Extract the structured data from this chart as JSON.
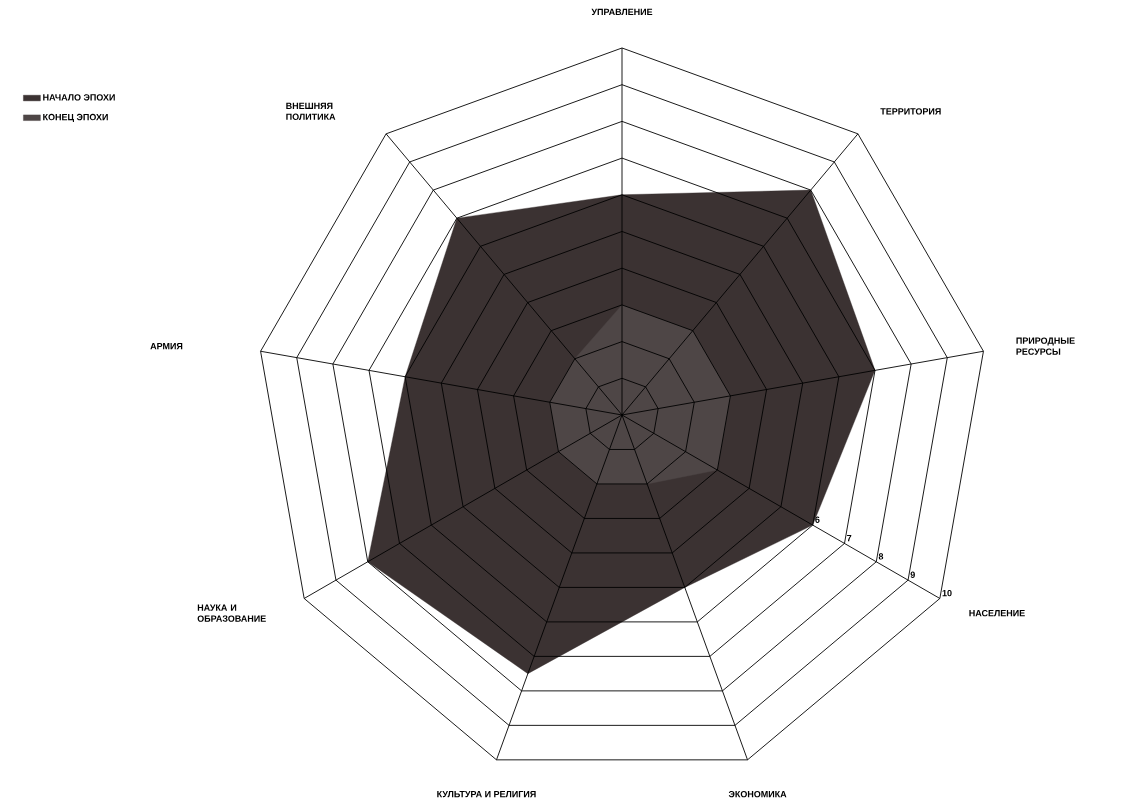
{
  "chart_data": {
    "type": "radar",
    "categories": [
      "УПРАВЛЕНИЕ",
      "ТЕРРИТОРИЯ",
      "ПРИРОДНЫЕ РЕСУРСЫ",
      "НАСЕЛЕНИЕ",
      "ЭКОНОМИКА",
      "КУЛЬТУРА И РЕЛИГИЯ",
      "НАУКА И ОБРАЗОВАНИЕ",
      "АРМИЯ",
      "ВНЕШНЯЯ ПОЛИТИКА"
    ],
    "series": [
      {
        "name": "НАЧАЛО ЭПОХИ",
        "color": "#3b3232",
        "values": [
          6,
          8,
          7,
          6,
          5,
          7.5,
          8,
          6,
          7
        ]
      },
      {
        "name": "КОНЕЦ ЭПОХИ",
        "color": "#4e4646",
        "values": [
          3,
          3,
          3,
          3,
          2,
          2,
          2,
          2,
          2
        ]
      }
    ],
    "ylim": [
      0,
      10
    ],
    "yticks": [
      6,
      7,
      8,
      9,
      10
    ],
    "grid": true,
    "legend": "top left"
  }
}
